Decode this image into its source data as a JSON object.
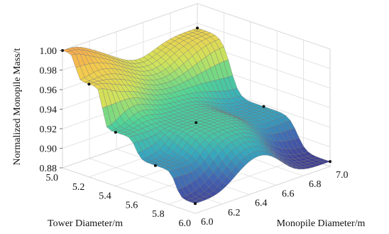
{
  "chart_data": {
    "type": "surface",
    "title": "",
    "xlabel": "Tower Diameter/m",
    "ylabel": "Monopile Diameter/m",
    "zlabel": "Normalized Monopile Mass/t",
    "x_ticks": [
      "5.0",
      "5.2",
      "5.4",
      "5.6",
      "5.8",
      "6.0"
    ],
    "y_ticks": [
      "6.0",
      "6.2",
      "6.4",
      "6.6",
      "6.8",
      "7.0"
    ],
    "z_ticks": [
      "0.88",
      "0.90",
      "0.92",
      "0.94",
      "0.96",
      "0.98",
      "1.00"
    ],
    "xlim": [
      5.0,
      6.0
    ],
    "ylim": [
      6.0,
      7.0
    ],
    "zlim": [
      0.88,
      1.0
    ],
    "grid": true,
    "colormap": [
      "#2b1f7a",
      "#2f4fa8",
      "#21a0b8",
      "#3fd08a",
      "#c8e04a",
      "#f2c83a",
      "#f5a23a"
    ],
    "mesh_line_color": "#777777",
    "sample_points": [
      {
        "x": 5.0,
        "y": 6.0,
        "z": 1.0
      },
      {
        "x": 5.0,
        "y": 7.0,
        "z": 0.975
      },
      {
        "x": 5.2,
        "y": 6.0,
        "z": 0.975
      },
      {
        "x": 5.4,
        "y": 6.0,
        "z": 0.935
      },
      {
        "x": 5.6,
        "y": 6.4,
        "z": 0.935
      },
      {
        "x": 5.7,
        "y": 6.0,
        "z": 0.915
      },
      {
        "x": 6.0,
        "y": 6.0,
        "z": 0.89
      },
      {
        "x": 6.0,
        "y": 7.0,
        "z": 0.885
      },
      {
        "x": 5.5,
        "y": 7.0,
        "z": 0.918
      }
    ]
  }
}
